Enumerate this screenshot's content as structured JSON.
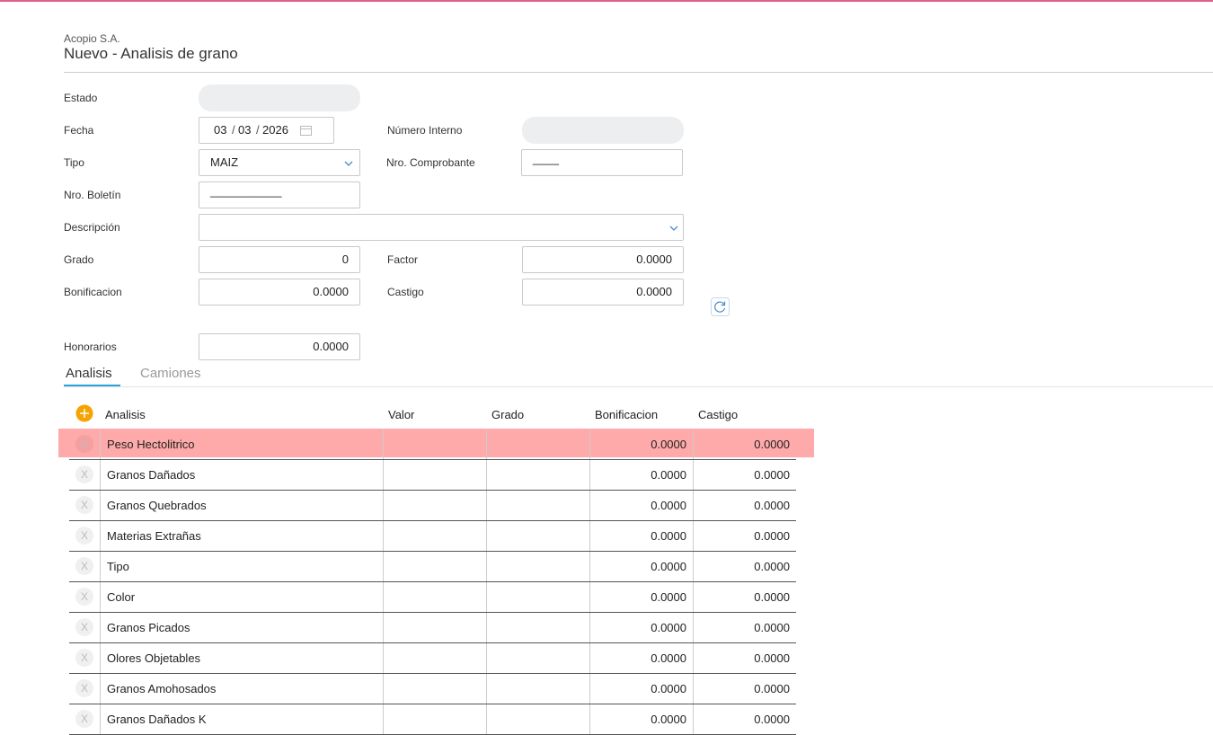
{
  "header": {
    "company": "Acopio S.A.",
    "title": "Nuevo - Analisis de grano"
  },
  "form": {
    "estado": {
      "label": "Estado"
    },
    "fecha": {
      "label": "Fecha",
      "day": "03",
      "month": "03",
      "year": "2026"
    },
    "numero_interno": {
      "label": "Número Interno"
    },
    "tipo": {
      "label": "Tipo",
      "value": "MAIZ"
    },
    "nro_comprobante": {
      "label": "Nro. Comprobante",
      "value": "____"
    },
    "nro_boletin": {
      "label": "Nro. Boletín",
      "value": "___________"
    },
    "descripcion": {
      "label": "Descripción"
    },
    "grado": {
      "label": "Grado",
      "value": "0"
    },
    "factor": {
      "label": "Factor",
      "value": "0.0000"
    },
    "bonificacion": {
      "label": "Bonificacion",
      "value": "0.0000"
    },
    "castigo": {
      "label": "Castigo",
      "value": "0.0000"
    },
    "honorarios": {
      "label": "Honorarios",
      "value": "0.0000"
    }
  },
  "tabs": [
    "Analisis",
    "Camiones"
  ],
  "table": {
    "columns": [
      "Analisis",
      "Valor",
      "Grado",
      "Bonificacion",
      "Castigo"
    ],
    "delete_label": "X",
    "rows": [
      {
        "name": "Peso Hectolitrico",
        "bonificacion": "0.0000",
        "castigo": "0.0000",
        "highlighted": true
      },
      {
        "name": "Granos Dañados",
        "bonificacion": "0.0000",
        "castigo": "0.0000"
      },
      {
        "name": "Granos Quebrados",
        "bonificacion": "0.0000",
        "castigo": "0.0000"
      },
      {
        "name": "Materias Extrañas",
        "bonificacion": "0.0000",
        "castigo": "0.0000"
      },
      {
        "name": "Tipo",
        "bonificacion": "0.0000",
        "castigo": "0.0000"
      },
      {
        "name": "Color",
        "bonificacion": "0.0000",
        "castigo": "0.0000"
      },
      {
        "name": "Granos Picados",
        "bonificacion": "0.0000",
        "castigo": "0.0000"
      },
      {
        "name": "Olores Objetables",
        "bonificacion": "0.0000",
        "castigo": "0.0000"
      },
      {
        "name": "Granos Amohosados",
        "bonificacion": "0.0000",
        "castigo": "0.0000"
      },
      {
        "name": "Granos Dañados K",
        "bonificacion": "0.0000",
        "castigo": "0.0000"
      }
    ]
  }
}
